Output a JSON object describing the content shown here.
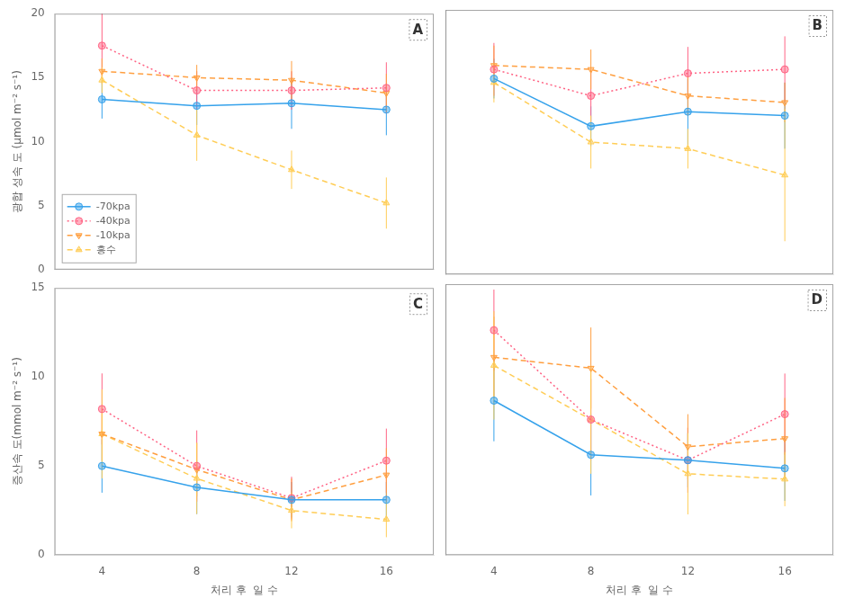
{
  "chart_data": [
    {
      "type": "line",
      "annotations": [
        "A"
      ],
      "x": [
        4,
        8,
        12,
        16
      ],
      "xlim": [
        2,
        18
      ],
      "xticks": [
        4,
        8,
        12,
        16
      ],
      "ylim": [
        0,
        20
      ],
      "yticks": [
        0,
        5,
        10,
        15,
        20
      ],
      "ylabel": "광합 성속 도 (μmol m⁻² s⁻¹)",
      "grid": false,
      "legend": "lower left",
      "tick_labels": "y",
      "series": [
        {
          "name": "-70kpa",
          "marker": "circle",
          "line_style": "solid",
          "values": [
            13.3,
            12.8,
            13.0,
            12.5
          ],
          "errors": [
            1.5,
            1.5,
            2.0,
            2.0
          ]
        },
        {
          "name": "-40kpa",
          "marker": "circle",
          "line_style": "dotted",
          "values": [
            17.5,
            14.0,
            14.0,
            14.2
          ],
          "errors": [
            2.5,
            1.5,
            1.5,
            2.0
          ]
        },
        {
          "name": "-10kpa",
          "marker": "triangle-down",
          "line_style": "dashed",
          "values": [
            15.5,
            15.0,
            14.8,
            13.8
          ],
          "errors": [
            1.0,
            1.0,
            1.5,
            1.5
          ]
        },
        {
          "name": "흥수",
          "marker": "triangle",
          "line_style": "dashed",
          "values": [
            14.8,
            10.5,
            7.8,
            5.2
          ],
          "errors": [
            1.0,
            2.0,
            1.5,
            2.0
          ]
        }
      ]
    },
    {
      "type": "line",
      "annotations": [
        "B"
      ],
      "x": [
        4,
        8,
        12,
        16
      ],
      "xlim": [
        2,
        18
      ],
      "xticks": [
        4,
        8,
        12,
        16
      ],
      "ylim": [
        0,
        20
      ],
      "yticks": [
        0,
        5,
        10,
        15,
        20
      ],
      "grid": false,
      "legend": false,
      "tick_labels": false,
      "series": [
        {
          "name": "-70kpa",
          "marker": "circle",
          "line_style": "solid",
          "values": [
            14.8,
            11.2,
            12.3,
            12.0
          ],
          "errors": [
            1.5,
            1.5,
            2.5,
            2.5
          ]
        },
        {
          "name": "-40kpa",
          "marker": "circle",
          "line_style": "dotted",
          "values": [
            15.5,
            13.5,
            15.2,
            15.5
          ],
          "errors": [
            2.0,
            2.0,
            2.0,
            2.5
          ]
        },
        {
          "name": "-10kpa",
          "marker": "triangle-down",
          "line_style": "dashed",
          "values": [
            15.8,
            15.5,
            13.5,
            13.0
          ],
          "errors": [
            1.5,
            1.5,
            1.5,
            1.5
          ]
        },
        {
          "name": "흥수",
          "marker": "triangle",
          "line_style": "dashed",
          "values": [
            14.5,
            10.0,
            9.5,
            7.5
          ],
          "errors": [
            1.5,
            2.0,
            1.5,
            5.0
          ]
        }
      ]
    },
    {
      "type": "line",
      "annotations": [
        "C"
      ],
      "x": [
        4,
        8,
        12,
        16
      ],
      "xlim": [
        2,
        18
      ],
      "xticks": [
        4,
        8,
        12,
        16
      ],
      "ylim": [
        0,
        15
      ],
      "yticks": [
        0,
        5,
        10,
        15
      ],
      "ylabel": "증산속 도(mmol m⁻² s⁻¹)",
      "xlabel": "처리 후  일 수",
      "grid": false,
      "legend": false,
      "series": [
        {
          "name": "-70kpa",
          "marker": "circle",
          "line_style": "solid",
          "values": [
            5.0,
            3.8,
            3.1,
            3.1
          ],
          "errors": [
            1.5,
            1.5,
            1.0,
            1.0
          ]
        },
        {
          "name": "-40kpa",
          "marker": "circle",
          "line_style": "dotted",
          "values": [
            8.2,
            5.0,
            3.2,
            5.3
          ],
          "errors": [
            2.0,
            2.0,
            1.2,
            1.8
          ]
        },
        {
          "name": "-10kpa",
          "marker": "triangle-down",
          "line_style": "dashed",
          "values": [
            6.8,
            4.8,
            3.1,
            4.5
          ],
          "errors": [
            1.5,
            1.5,
            1.2,
            1.5
          ]
        },
        {
          "name": "흥수",
          "marker": "triangle",
          "line_style": "dashed",
          "values": [
            6.8,
            4.3,
            2.5,
            2.0
          ],
          "errors": [
            2.5,
            2.0,
            1.0,
            1.0
          ]
        }
      ]
    },
    {
      "type": "line",
      "annotations": [
        "D"
      ],
      "x": [
        4,
        8,
        12,
        16
      ],
      "xlim": [
        2,
        18
      ],
      "xticks": [
        4,
        8,
        12,
        16
      ],
      "ylim": [
        0,
        10
      ],
      "yticks": [
        0,
        5,
        10
      ],
      "xlabel": "처리 후  일 수",
      "grid": false,
      "legend": false,
      "tick_labels": "x",
      "series": [
        {
          "name": "-70kpa",
          "marker": "circle",
          "line_style": "solid",
          "values": [
            5.7,
            3.7,
            3.5,
            3.2
          ],
          "errors": [
            1.5,
            1.5,
            1.0,
            1.2
          ]
        },
        {
          "name": "-40kpa",
          "marker": "circle",
          "line_style": "dotted",
          "values": [
            8.3,
            5.0,
            3.5,
            5.2
          ],
          "errors": [
            1.5,
            1.5,
            1.2,
            1.5
          ]
        },
        {
          "name": "-10kpa",
          "marker": "triangle-down",
          "line_style": "dashed",
          "values": [
            7.3,
            6.9,
            4.0,
            4.3
          ],
          "errors": [
            1.5,
            1.5,
            1.2,
            1.5
          ]
        },
        {
          "name": "흥수",
          "marker": "triangle",
          "line_style": "dashed",
          "values": [
            7.0,
            5.0,
            3.0,
            2.8
          ],
          "errors": [
            2.0,
            2.0,
            1.5,
            1.0
          ]
        }
      ]
    }
  ]
}
